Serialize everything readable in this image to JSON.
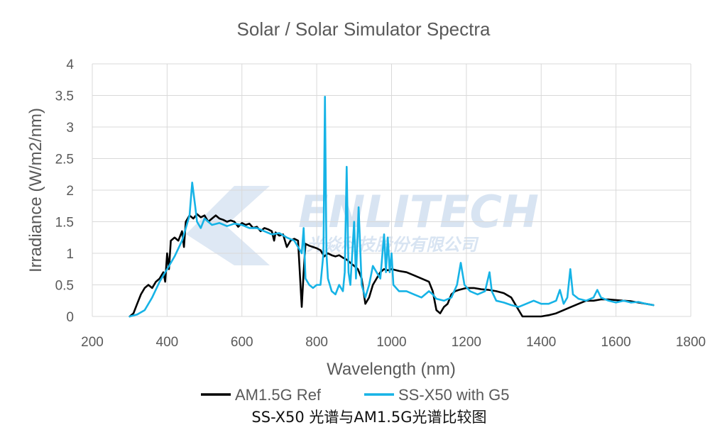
{
  "chart_data": {
    "type": "line",
    "title": "Solar / Solar Simulator Spectra",
    "xlabel": "Wavelength (nm)",
    "ylabel": "Irradiance (W/m2/nm)",
    "xlim": [
      200,
      1800
    ],
    "ylim": [
      0,
      4
    ],
    "xticks": [
      200,
      400,
      600,
      800,
      1000,
      1200,
      1400,
      1600,
      1800
    ],
    "xtick_labels": [
      "200",
      "400",
      "600",
      "800",
      "1000",
      "1200",
      "1400",
      "1600",
      "1800"
    ],
    "yticks": [
      0,
      0.5,
      1,
      1.5,
      2,
      2.5,
      3,
      3.5,
      4
    ],
    "ytick_labels": [
      "0",
      "0.5",
      "1",
      "1.5",
      "2",
      "2.5",
      "3",
      "3.5",
      "4"
    ],
    "grid": true,
    "legend_position": "bottom",
    "series": [
      {
        "name": "AM1.5G Ref",
        "color": "#000000",
        "points": [
          [
            300,
            0
          ],
          [
            310,
            0.05
          ],
          [
            320,
            0.2
          ],
          [
            330,
            0.35
          ],
          [
            340,
            0.45
          ],
          [
            350,
            0.5
          ],
          [
            360,
            0.45
          ],
          [
            370,
            0.55
          ],
          [
            380,
            0.6
          ],
          [
            390,
            0.7
          ],
          [
            395,
            0.55
          ],
          [
            400,
            1.0
          ],
          [
            405,
            0.75
          ],
          [
            410,
            1.2
          ],
          [
            420,
            1.25
          ],
          [
            430,
            1.2
          ],
          [
            440,
            1.35
          ],
          [
            445,
            1.1
          ],
          [
            450,
            1.5
          ],
          [
            460,
            1.6
          ],
          [
            470,
            1.55
          ],
          [
            480,
            1.62
          ],
          [
            490,
            1.57
          ],
          [
            500,
            1.6
          ],
          [
            510,
            1.5
          ],
          [
            520,
            1.55
          ],
          [
            530,
            1.6
          ],
          [
            540,
            1.55
          ],
          [
            550,
            1.53
          ],
          [
            560,
            1.5
          ],
          [
            570,
            1.52
          ],
          [
            580,
            1.5
          ],
          [
            590,
            1.42
          ],
          [
            600,
            1.48
          ],
          [
            610,
            1.45
          ],
          [
            620,
            1.47
          ],
          [
            630,
            1.4
          ],
          [
            640,
            1.42
          ],
          [
            650,
            1.35
          ],
          [
            660,
            1.4
          ],
          [
            670,
            1.38
          ],
          [
            680,
            1.35
          ],
          [
            686,
            1.2
          ],
          [
            690,
            1.33
          ],
          [
            700,
            1.28
          ],
          [
            710,
            1.3
          ],
          [
            720,
            1.1
          ],
          [
            730,
            1.2
          ],
          [
            740,
            1.23
          ],
          [
            750,
            1.2
          ],
          [
            760,
            0.15
          ],
          [
            765,
            0.7
          ],
          [
            770,
            1.15
          ],
          [
            780,
            1.12
          ],
          [
            790,
            1.1
          ],
          [
            800,
            1.08
          ],
          [
            810,
            1.05
          ],
          [
            820,
            0.95
          ],
          [
            830,
            1.0
          ],
          [
            840,
            0.97
          ],
          [
            850,
            0.95
          ],
          [
            860,
            0.97
          ],
          [
            870,
            0.93
          ],
          [
            880,
            0.9
          ],
          [
            890,
            0.85
          ],
          [
            900,
            0.8
          ],
          [
            910,
            0.75
          ],
          [
            920,
            0.6
          ],
          [
            930,
            0.2
          ],
          [
            940,
            0.3
          ],
          [
            950,
            0.5
          ],
          [
            960,
            0.6
          ],
          [
            970,
            0.7
          ],
          [
            980,
            0.75
          ],
          [
            990,
            0.73
          ],
          [
            1000,
            0.75
          ],
          [
            1020,
            0.72
          ],
          [
            1040,
            0.7
          ],
          [
            1060,
            0.65
          ],
          [
            1080,
            0.6
          ],
          [
            1100,
            0.55
          ],
          [
            1110,
            0.4
          ],
          [
            1120,
            0.1
          ],
          [
            1130,
            0.05
          ],
          [
            1140,
            0.15
          ],
          [
            1150,
            0.2
          ],
          [
            1160,
            0.35
          ],
          [
            1170,
            0.4
          ],
          [
            1180,
            0.42
          ],
          [
            1200,
            0.45
          ],
          [
            1220,
            0.45
          ],
          [
            1240,
            0.43
          ],
          [
            1260,
            0.42
          ],
          [
            1280,
            0.4
          ],
          [
            1300,
            0.37
          ],
          [
            1320,
            0.3
          ],
          [
            1340,
            0.1
          ],
          [
            1350,
            0
          ],
          [
            1380,
            0
          ],
          [
            1400,
            0
          ],
          [
            1420,
            0.02
          ],
          [
            1440,
            0.05
          ],
          [
            1460,
            0.1
          ],
          [
            1480,
            0.15
          ],
          [
            1500,
            0.2
          ],
          [
            1520,
            0.25
          ],
          [
            1540,
            0.25
          ],
          [
            1560,
            0.27
          ],
          [
            1580,
            0.27
          ],
          [
            1600,
            0.26
          ],
          [
            1620,
            0.25
          ],
          [
            1640,
            0.24
          ],
          [
            1660,
            0.22
          ],
          [
            1680,
            0.2
          ],
          [
            1700,
            0.18
          ]
        ]
      },
      {
        "name": "SS-X50 with G5",
        "color": "#16b3e6",
        "points": [
          [
            300,
            0
          ],
          [
            320,
            0.03
          ],
          [
            340,
            0.1
          ],
          [
            360,
            0.3
          ],
          [
            380,
            0.55
          ],
          [
            400,
            0.75
          ],
          [
            420,
            0.95
          ],
          [
            440,
            1.2
          ],
          [
            450,
            1.4
          ],
          [
            460,
            1.6
          ],
          [
            467,
            2.12
          ],
          [
            475,
            1.75
          ],
          [
            480,
            1.5
          ],
          [
            490,
            1.4
          ],
          [
            500,
            1.55
          ],
          [
            520,
            1.45
          ],
          [
            540,
            1.48
          ],
          [
            560,
            1.43
          ],
          [
            580,
            1.47
          ],
          [
            600,
            1.45
          ],
          [
            620,
            1.4
          ],
          [
            640,
            1.4
          ],
          [
            660,
            1.35
          ],
          [
            680,
            1.3
          ],
          [
            700,
            1.32
          ],
          [
            720,
            1.25
          ],
          [
            740,
            1.2
          ],
          [
            750,
            1.1
          ],
          [
            760,
            1.0
          ],
          [
            765,
            1.4
          ],
          [
            770,
            0.6
          ],
          [
            780,
            0.5
          ],
          [
            790,
            0.45
          ],
          [
            800,
            0.5
          ],
          [
            810,
            0.5
          ],
          [
            818,
            1.0
          ],
          [
            822,
            3.48
          ],
          [
            826,
            1.0
          ],
          [
            830,
            0.6
          ],
          [
            840,
            0.4
          ],
          [
            850,
            0.35
          ],
          [
            860,
            0.5
          ],
          [
            870,
            0.4
          ],
          [
            875,
            0.7
          ],
          [
            880,
            2.37
          ],
          [
            885,
            0.7
          ],
          [
            890,
            0.5
          ],
          [
            900,
            1.5
          ],
          [
            905,
            0.6
          ],
          [
            912,
            1.73
          ],
          [
            920,
            0.5
          ],
          [
            930,
            0.3
          ],
          [
            940,
            0.5
          ],
          [
            950,
            0.8
          ],
          [
            960,
            0.7
          ],
          [
            970,
            0.6
          ],
          [
            980,
            1.3
          ],
          [
            985,
            0.7
          ],
          [
            990,
            1.25
          ],
          [
            995,
            0.7
          ],
          [
            1000,
            1.0
          ],
          [
            1005,
            0.5
          ],
          [
            1020,
            0.4
          ],
          [
            1040,
            0.4
          ],
          [
            1060,
            0.35
          ],
          [
            1080,
            0.3
          ],
          [
            1100,
            0.4
          ],
          [
            1110,
            0.35
          ],
          [
            1120,
            0.28
          ],
          [
            1140,
            0.25
          ],
          [
            1160,
            0.3
          ],
          [
            1175,
            0.5
          ],
          [
            1185,
            0.85
          ],
          [
            1195,
            0.5
          ],
          [
            1210,
            0.4
          ],
          [
            1230,
            0.35
          ],
          [
            1250,
            0.4
          ],
          [
            1262,
            0.7
          ],
          [
            1268,
            0.4
          ],
          [
            1280,
            0.25
          ],
          [
            1300,
            0.22
          ],
          [
            1320,
            0.18
          ],
          [
            1340,
            0.15
          ],
          [
            1360,
            0.2
          ],
          [
            1380,
            0.25
          ],
          [
            1400,
            0.2
          ],
          [
            1420,
            0.2
          ],
          [
            1440,
            0.25
          ],
          [
            1450,
            0.42
          ],
          [
            1460,
            0.2
          ],
          [
            1470,
            0.3
          ],
          [
            1478,
            0.75
          ],
          [
            1485,
            0.35
          ],
          [
            1500,
            0.28
          ],
          [
            1520,
            0.25
          ],
          [
            1540,
            0.3
          ],
          [
            1550,
            0.42
          ],
          [
            1560,
            0.3
          ],
          [
            1580,
            0.25
          ],
          [
            1600,
            0.22
          ],
          [
            1620,
            0.25
          ],
          [
            1640,
            0.22
          ],
          [
            1660,
            0.23
          ],
          [
            1680,
            0.2
          ],
          [
            1700,
            0.18
          ]
        ]
      }
    ]
  },
  "watermark": {
    "brand": "ENLITECH",
    "subtitle": "光焱科技股份有限公司",
    "color": "#d8e4f2"
  },
  "caption": "SS-X50 光谱与AM1.5G光谱比较图"
}
